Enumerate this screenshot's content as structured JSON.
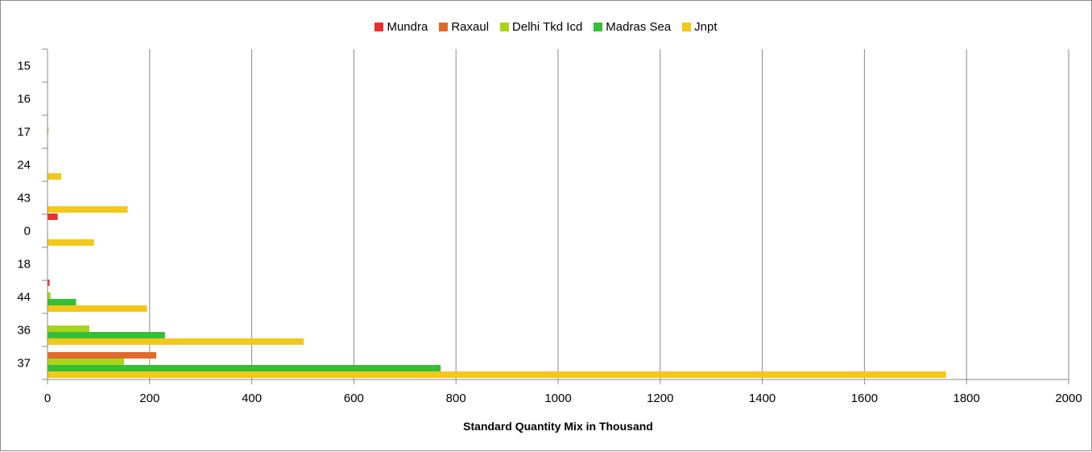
{
  "chart_data": {
    "type": "bar",
    "orientation": "horizontal",
    "categories": [
      "15",
      "16",
      "17",
      "24",
      "43",
      "0",
      "18",
      "44",
      "36",
      "37"
    ],
    "series": [
      {
        "name": "Mundra",
        "color": "#e8312f",
        "values": [
          0,
          0,
          0,
          0,
          0,
          20,
          0,
          4,
          0,
          0
        ]
      },
      {
        "name": "Raxaul",
        "color": "#e06a2c",
        "values": [
          0,
          0,
          0,
          0,
          0,
          0,
          0,
          0,
          0,
          213
        ]
      },
      {
        "name": "Delhi Tkd Icd",
        "color": "#a8d51c",
        "values": [
          0,
          0,
          2,
          0,
          0,
          0,
          0,
          6,
          82,
          150
        ]
      },
      {
        "name": "Madras Sea",
        "color": "#36bf36",
        "values": [
          0,
          0,
          0,
          0,
          0,
          0,
          0,
          56,
          230,
          770
        ]
      },
      {
        "name": "Jnpt",
        "color": "#f2c81a",
        "values": [
          0,
          0,
          0,
          27,
          157,
          91,
          0,
          195,
          502,
          1760
        ]
      }
    ],
    "xlabel": "Standard Quantity Mix in Thousand",
    "ylabel": "",
    "xlim": [
      0,
      2000
    ],
    "xticks": [
      "0",
      "200",
      "400",
      "600",
      "800",
      "1000",
      "1200",
      "1400",
      "1600",
      "1800",
      "2000"
    ],
    "grid": "vertical",
    "legend_position": "top"
  }
}
